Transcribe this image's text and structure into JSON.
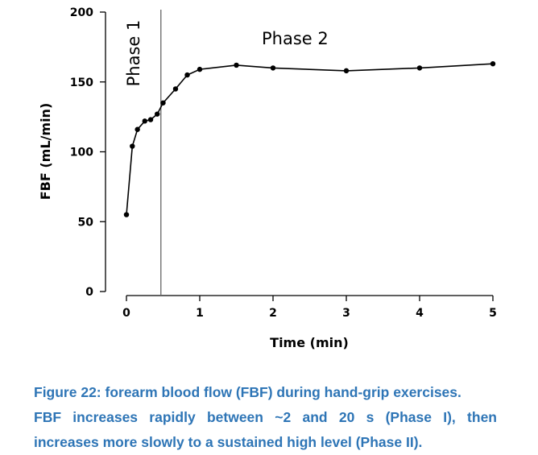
{
  "chart_data": {
    "type": "line",
    "xlabel": "Time (min)",
    "ylabel": "FBF (mL/min)",
    "xlim": [
      0,
      5
    ],
    "ylim": [
      0,
      200
    ],
    "xticks": [
      "0",
      "1",
      "2",
      "3",
      "4",
      "5"
    ],
    "yticks": [
      "0",
      "50",
      "100",
      "150",
      "200"
    ],
    "grid": false,
    "series": [
      {
        "x": [
          0,
          0.08,
          0.15,
          0.25,
          0.33,
          0.42,
          0.5,
          0.67,
          0.83,
          1.0,
          1.5,
          2.0,
          3.0,
          4.0,
          5.0
        ],
        "y": [
          55,
          104,
          116,
          122,
          123,
          127,
          135,
          145,
          155,
          159,
          162,
          160,
          158,
          160,
          163
        ]
      }
    ],
    "annotations": {
      "phase_divider_x": 0.47,
      "phase1_label": "Phase 1",
      "phase2_label": "Phase 2"
    }
  },
  "caption": {
    "line1": "Figure 22: forearm blood flow (FBF) during hand-grip exercises.",
    "line2": "FBF increases rapidly between ~2 and 20 s (Phase I), then",
    "line3": "increases more slowly to a sustained high level (Phase II)."
  }
}
